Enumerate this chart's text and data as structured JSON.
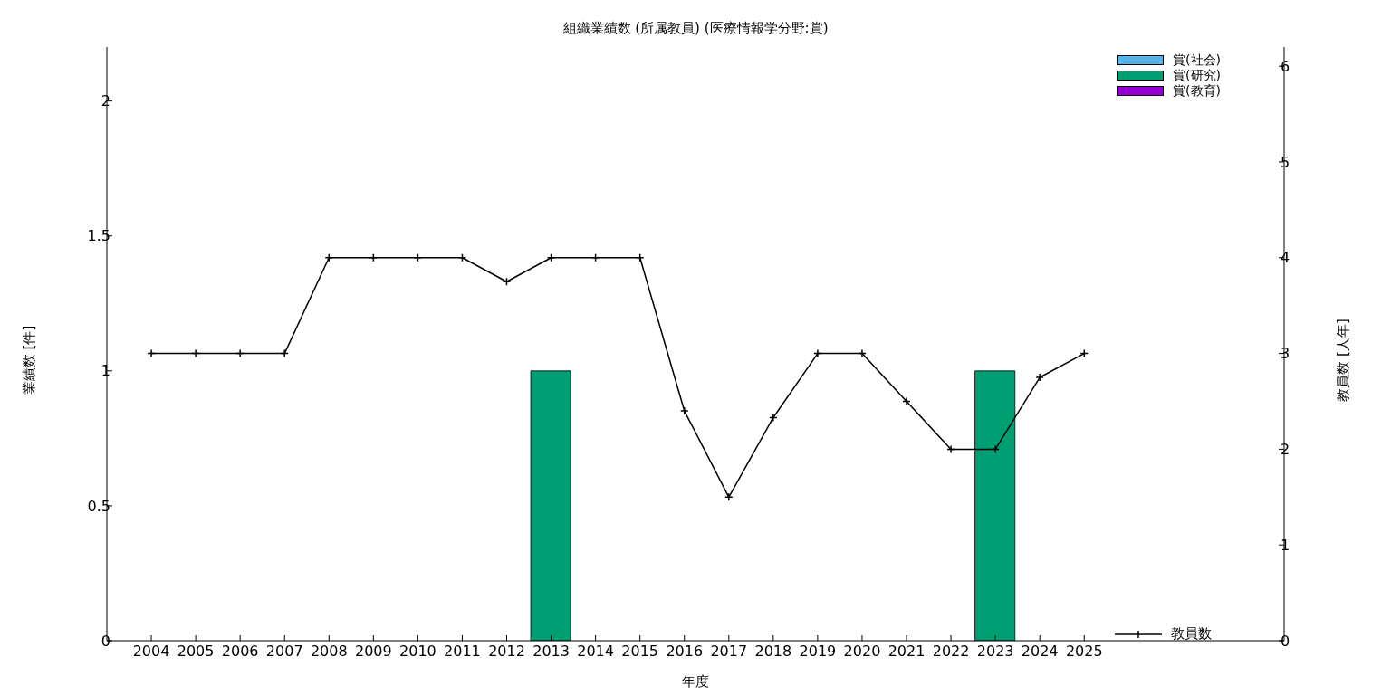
{
  "chart_data": {
    "type": "bar",
    "title": "組織業績数 (所属教員) (医療情報学分野:賞)",
    "xlabel": "年度",
    "ylabel": "業績数 [件]",
    "y2label": "教員数 [人年]",
    "x": [
      2004,
      2005,
      2006,
      2007,
      2008,
      2009,
      2010,
      2011,
      2012,
      2013,
      2014,
      2015,
      2016,
      2017,
      2018,
      2019,
      2020,
      2021,
      2022,
      2023,
      2024,
      2025
    ],
    "xlim": [
      2003,
      2029.5
    ],
    "xticks": [
      2004,
      2005,
      2006,
      2007,
      2008,
      2009,
      2010,
      2011,
      2012,
      2013,
      2014,
      2015,
      2016,
      2017,
      2018,
      2019,
      2020,
      2021,
      2022,
      2023,
      2024,
      2025
    ],
    "ylim": [
      0,
      2.2
    ],
    "yticks": [
      0,
      0.5,
      1,
      1.5,
      2
    ],
    "y2lim": [
      0,
      6.2
    ],
    "y2ticks": [
      0,
      1,
      2,
      3,
      4,
      5,
      6
    ],
    "stacked": true,
    "legend": "right",
    "series": [
      {
        "name": "賞(社会)",
        "color": "#56b4e9",
        "values": [
          0,
          0,
          0,
          0,
          0,
          0,
          0,
          0,
          0,
          0,
          0,
          0,
          0,
          0,
          0,
          0,
          0,
          0,
          0,
          0,
          0,
          0
        ]
      },
      {
        "name": "賞(研究)",
        "color": "#009e73",
        "values": [
          0,
          0,
          0,
          0,
          0,
          0,
          0,
          0,
          0,
          1,
          0,
          0,
          0,
          0,
          0,
          0,
          0,
          0,
          0,
          1,
          0,
          0
        ]
      },
      {
        "name": "賞(教育)",
        "color": "#9400d3",
        "values": [
          0,
          0,
          0,
          0,
          0,
          0,
          0,
          0,
          0,
          0,
          0,
          0,
          0,
          0,
          0,
          0,
          0,
          0,
          0,
          0,
          0,
          0
        ]
      },
      {
        "name": "教員数",
        "type": "line",
        "axis": "y2",
        "color": "#000000",
        "marker": "cross",
        "values": [
          3,
          3,
          3,
          3,
          4,
          4,
          4,
          4,
          3.75,
          4,
          4,
          4,
          2.4,
          1.5,
          2.33,
          3,
          3,
          2.5,
          2,
          2,
          2.75,
          3
        ]
      }
    ]
  }
}
